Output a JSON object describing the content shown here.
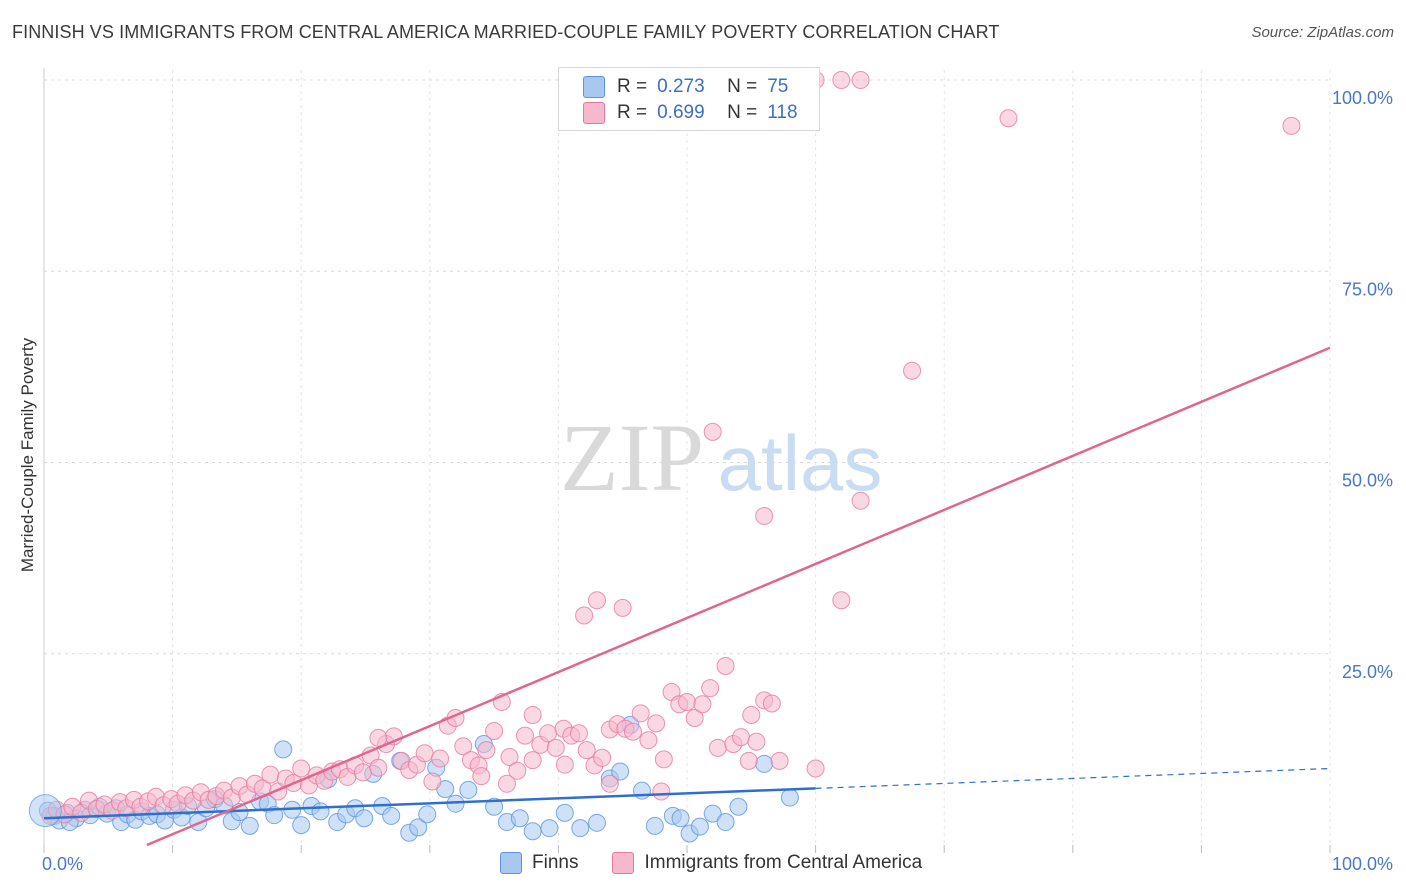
{
  "title": "FINNISH VS IMMIGRANTS FROM CENTRAL AMERICA MARRIED-COUPLE FAMILY POVERTY CORRELATION CHART",
  "source": "Source: ZipAtlas.com",
  "watermark": {
    "zip": "ZIP",
    "atlas": "atlas"
  },
  "legend": {
    "rows": [
      {
        "r_label": "R =",
        "r_value": "0.273",
        "n_label": "N =",
        "n_value": "75",
        "color": "#a8c8f0"
      },
      {
        "r_label": "R =",
        "r_value": "0.699",
        "n_label": "N =",
        "n_value": "118",
        "color": "#f5b8cc"
      }
    ]
  },
  "bottom_legend": {
    "finns": "Finns",
    "central_america": "Immigrants from Central America"
  },
  "chart_data": {
    "type": "scatter",
    "title": "FINNISH VS IMMIGRANTS FROM CENTRAL AMERICA MARRIED-COUPLE FAMILY POVERTY CORRELATION CHART",
    "xlabel": "",
    "ylabel": "Married-Couple Family Poverty",
    "xlim": [
      0,
      100
    ],
    "ylim": [
      0,
      100
    ],
    "x_tick_labels": [
      "0.0%",
      "100.0%"
    ],
    "y_tick_labels": [
      "100.0%",
      "75.0%",
      "50.0%",
      "25.0%"
    ],
    "y_tick_values": [
      100,
      75,
      50,
      25
    ],
    "grid": true,
    "series": [
      {
        "name": "Finns",
        "color": "#5b95df",
        "fill": "#a8c8f0",
        "trend": {
          "x0": 0,
          "y0": 3.5,
          "x1": 60,
          "y1": 7.4,
          "dash_x1": 100,
          "dash_y1": 10
        },
        "points": [
          [
            0.3,
            4.5
          ],
          [
            0.8,
            3.8
          ],
          [
            1.2,
            3.2
          ],
          [
            1.8,
            4.2
          ],
          [
            2.5,
            3.5
          ],
          [
            3.2,
            4.6
          ],
          [
            3.6,
            3.9
          ],
          [
            4.3,
            5.0
          ],
          [
            4.9,
            4.1
          ],
          [
            5.6,
            4.8
          ],
          [
            6.0,
            3.0
          ],
          [
            6.5,
            4.0
          ],
          [
            7.1,
            3.3
          ],
          [
            7.6,
            4.4
          ],
          [
            8.2,
            3.8
          ],
          [
            8.8,
            4.0
          ],
          [
            9.4,
            3.2
          ],
          [
            10.1,
            4.6
          ],
          [
            10.7,
            3.6
          ],
          [
            11.2,
            5.1
          ],
          [
            12.0,
            3.0
          ],
          [
            12.6,
            4.8
          ],
          [
            13.3,
            6.0
          ],
          [
            14.0,
            5.2
          ],
          [
            14.6,
            3.1
          ],
          [
            15.2,
            4.3
          ],
          [
            16.0,
            2.5
          ],
          [
            16.8,
            5.7
          ],
          [
            17.4,
            5.4
          ],
          [
            17.9,
            3.9
          ],
          [
            18.6,
            12.5
          ],
          [
            19.3,
            4.6
          ],
          [
            20.0,
            2.6
          ],
          [
            20.8,
            5.1
          ],
          [
            21.5,
            4.4
          ],
          [
            22.1,
            8.6
          ],
          [
            22.8,
            3.0
          ],
          [
            23.5,
            4.0
          ],
          [
            24.2,
            4.8
          ],
          [
            24.9,
            3.5
          ],
          [
            25.6,
            9.3
          ],
          [
            26.3,
            5.1
          ],
          [
            27.0,
            3.8
          ],
          [
            27.7,
            11.0
          ],
          [
            28.4,
            1.6
          ],
          [
            29.1,
            2.3
          ],
          [
            29.8,
            4.0
          ],
          [
            30.5,
            10.1
          ],
          [
            31.2,
            7.3
          ],
          [
            32.0,
            5.4
          ],
          [
            33.0,
            7.2
          ],
          [
            34.2,
            13.2
          ],
          [
            35.0,
            5.0
          ],
          [
            36.0,
            3.0
          ],
          [
            37.0,
            3.5
          ],
          [
            38.0,
            1.8
          ],
          [
            39.3,
            2.2
          ],
          [
            40.5,
            4.2
          ],
          [
            41.7,
            2.2
          ],
          [
            43.0,
            2.9
          ],
          [
            44.0,
            8.7
          ],
          [
            44.8,
            9.6
          ],
          [
            45.6,
            15.7
          ],
          [
            46.5,
            7.1
          ],
          [
            47.5,
            2.5
          ],
          [
            48.9,
            3.8
          ],
          [
            50.2,
            1.5
          ],
          [
            51.0,
            2.4
          ],
          [
            52.0,
            4.1
          ],
          [
            53.0,
            3.0
          ],
          [
            56.0,
            10.6
          ],
          [
            58.0,
            6.2
          ],
          [
            54.0,
            5.0
          ],
          [
            49.5,
            3.5
          ],
          [
            2.0,
            3.0
          ]
        ]
      },
      {
        "name": "Immigrants from Central America",
        "color": "#e8799e",
        "fill": "#f5b8cc",
        "trend": {
          "x0": 8,
          "y0": 0,
          "x1": 100,
          "y1": 65
        },
        "points": [
          [
            0.5,
            3.8
          ],
          [
            1.0,
            4.6
          ],
          [
            1.6,
            4.0
          ],
          [
            2.2,
            5.0
          ],
          [
            2.9,
            4.2
          ],
          [
            3.5,
            5.8
          ],
          [
            4.1,
            4.7
          ],
          [
            4.7,
            5.3
          ],
          [
            5.3,
            4.5
          ],
          [
            5.9,
            5.6
          ],
          [
            6.4,
            4.8
          ],
          [
            7.0,
            5.9
          ],
          [
            7.5,
            5.0
          ],
          [
            8.1,
            5.7
          ],
          [
            8.7,
            6.3
          ],
          [
            9.3,
            5.2
          ],
          [
            9.9,
            6.0
          ],
          [
            10.4,
            5.4
          ],
          [
            11.0,
            6.5
          ],
          [
            11.6,
            5.8
          ],
          [
            12.2,
            6.9
          ],
          [
            12.8,
            5.9
          ],
          [
            13.4,
            6.4
          ],
          [
            14.0,
            7.1
          ],
          [
            14.6,
            6.2
          ],
          [
            15.2,
            7.7
          ],
          [
            15.8,
            6.6
          ],
          [
            16.4,
            8.0
          ],
          [
            17.0,
            7.4
          ],
          [
            17.6,
            9.2
          ],
          [
            18.2,
            7.0
          ],
          [
            18.8,
            8.7
          ],
          [
            19.4,
            8.1
          ],
          [
            20.0,
            10.0
          ],
          [
            20.6,
            7.8
          ],
          [
            21.2,
            9.1
          ],
          [
            21.8,
            8.4
          ],
          [
            22.4,
            9.6
          ],
          [
            23.0,
            9.9
          ],
          [
            23.6,
            8.9
          ],
          [
            24.2,
            10.4
          ],
          [
            24.8,
            9.5
          ],
          [
            25.4,
            11.7
          ],
          [
            26.0,
            10.1
          ],
          [
            26.6,
            13.2
          ],
          [
            27.2,
            14.2
          ],
          [
            27.8,
            11.0
          ],
          [
            28.4,
            9.8
          ],
          [
            29.0,
            10.5
          ],
          [
            29.6,
            12.0
          ],
          [
            30.2,
            8.3
          ],
          [
            30.8,
            11.3
          ],
          [
            31.4,
            15.6
          ],
          [
            32.0,
            16.6
          ],
          [
            32.6,
            12.9
          ],
          [
            33.2,
            11.1
          ],
          [
            33.8,
            10.4
          ],
          [
            34.4,
            12.4
          ],
          [
            35.0,
            14.9
          ],
          [
            35.6,
            18.7
          ],
          [
            36.2,
            11.5
          ],
          [
            36.8,
            9.7
          ],
          [
            37.4,
            14.3
          ],
          [
            38.0,
            11.1
          ],
          [
            38.6,
            13.1
          ],
          [
            39.2,
            14.6
          ],
          [
            39.8,
            12.7
          ],
          [
            40.4,
            15.2
          ],
          [
            41.0,
            14.3
          ],
          [
            41.6,
            14.6
          ],
          [
            42.2,
            12.4
          ],
          [
            42.8,
            10.4
          ],
          [
            43.4,
            11.4
          ],
          [
            44.0,
            15.1
          ],
          [
            44.6,
            15.8
          ],
          [
            45.2,
            15.2
          ],
          [
            45.8,
            14.8
          ],
          [
            46.4,
            17.2
          ],
          [
            47.0,
            13.7
          ],
          [
            47.6,
            15.9
          ],
          [
            48.2,
            11.2
          ],
          [
            48.8,
            20.0
          ],
          [
            49.4,
            18.4
          ],
          [
            50.0,
            18.7
          ],
          [
            50.6,
            16.6
          ],
          [
            51.2,
            18.4
          ],
          [
            51.8,
            20.5
          ],
          [
            52.4,
            12.7
          ],
          [
            53.0,
            23.4
          ],
          [
            53.6,
            13.2
          ],
          [
            54.2,
            14.1
          ],
          [
            54.8,
            11.0
          ],
          [
            55.4,
            13.5
          ],
          [
            56.0,
            18.9
          ],
          [
            56.6,
            18.5
          ],
          [
            57.2,
            11.0
          ],
          [
            42.0,
            30.0
          ],
          [
            43.0,
            32.0
          ],
          [
            45.0,
            31.0
          ],
          [
            48.0,
            7.0
          ],
          [
            52.0,
            54.0
          ],
          [
            56.0,
            43.0
          ],
          [
            60.0,
            10.0
          ],
          [
            62.0,
            32.0
          ],
          [
            63.5,
            45.0
          ],
          [
            67.5,
            62.0
          ],
          [
            60.0,
            100
          ],
          [
            62.0,
            100
          ],
          [
            63.5,
            100
          ],
          [
            75.0,
            95.0
          ],
          [
            97.0,
            94.0
          ],
          [
            55.0,
            17.0
          ],
          [
            36.0,
            8.0
          ],
          [
            44.0,
            8.0
          ],
          [
            38.0,
            17.0
          ],
          [
            40.5,
            10.5
          ],
          [
            26.0,
            14.0
          ],
          [
            34.0,
            9.0
          ]
        ]
      }
    ]
  }
}
